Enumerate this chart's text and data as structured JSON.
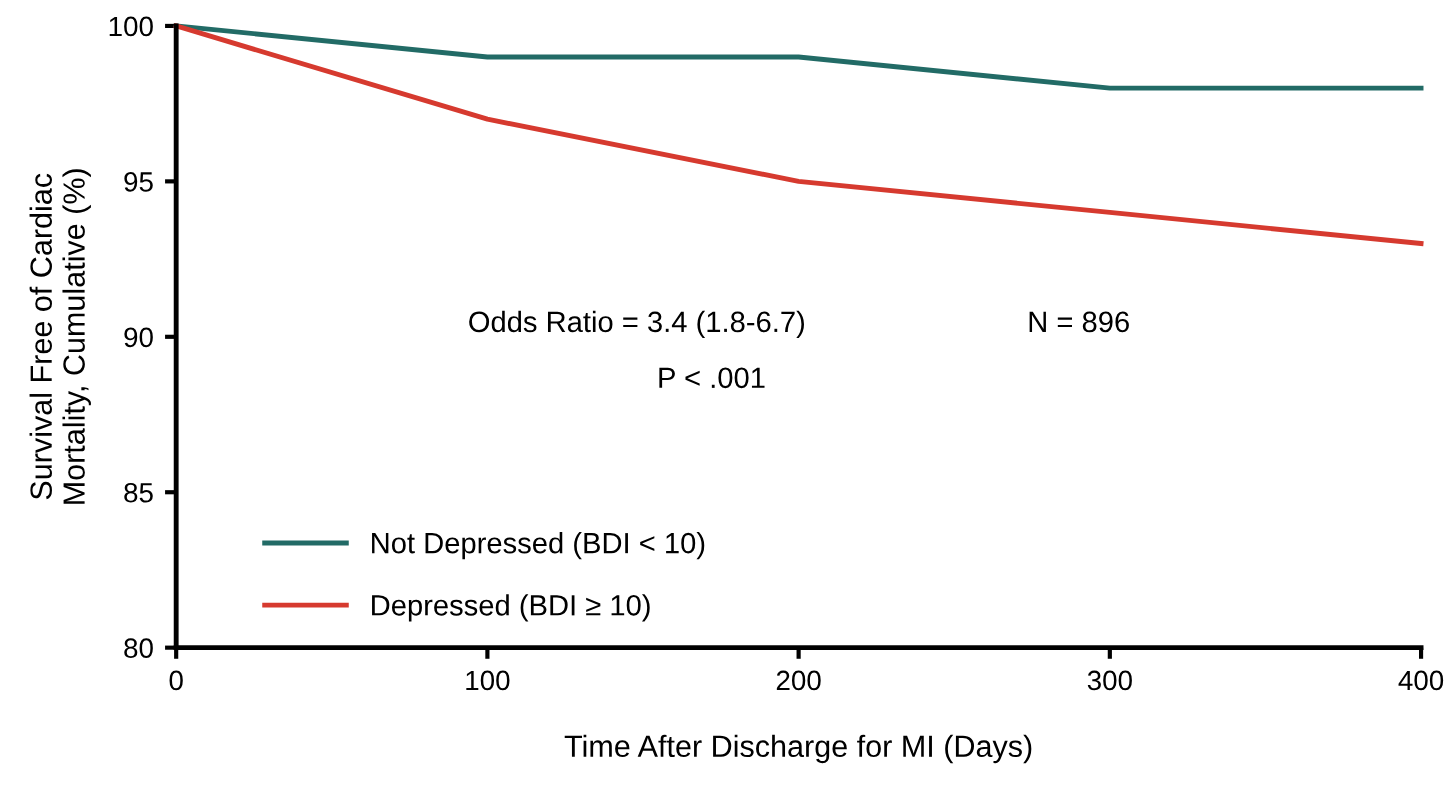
{
  "chart_data": {
    "type": "line",
    "xlabel": "Time After Discharge for MI (Days)",
    "ylabel": "Survival Free of Cardiac\nMortality, Cumulative (%)",
    "x": [
      0,
      100,
      200,
      300,
      400
    ],
    "series": [
      {
        "name": "Not Depressed (BDI < 10)",
        "color": "#226b66",
        "values": [
          100,
          99,
          99,
          98,
          98
        ]
      },
      {
        "name": "Depressed (BDI ≥ 10)",
        "color": "#d63a2f",
        "values": [
          100,
          97,
          95,
          94,
          93
        ]
      }
    ],
    "xlim": [
      0,
      400
    ],
    "xticks": [
      0,
      100,
      200,
      300,
      400
    ],
    "ylim": [
      80,
      100
    ],
    "yticks": [
      80,
      85,
      90,
      95,
      100
    ],
    "annotations": [
      "Odds Ratio = 3.4 (1.8-6.7)",
      "N = 896",
      "P < .001"
    ],
    "grid": false,
    "legend": "bottom left",
    "marker": "none",
    "line_style": "solid"
  }
}
